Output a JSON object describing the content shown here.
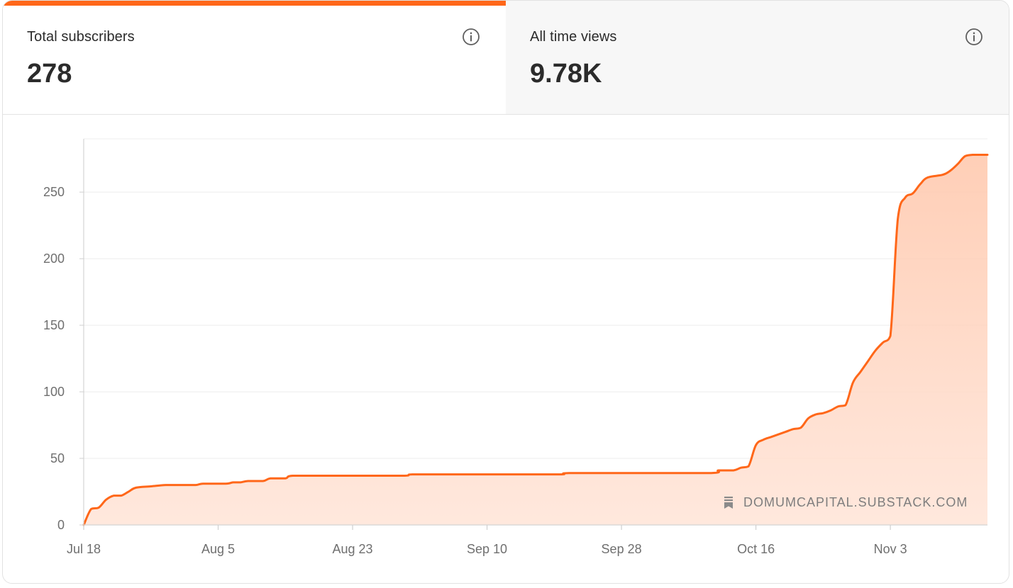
{
  "tabs": [
    {
      "label": "Total subscribers",
      "value": "278",
      "active": true
    },
    {
      "label": "All time views",
      "value": "9.78K",
      "active": false
    }
  ],
  "colors": {
    "accent": "#ff6719",
    "area_fill": "#ffd8c6",
    "grid": "#ececec",
    "axis_text": "#6f6f6f"
  },
  "icons": {
    "info": "info-circle-icon",
    "watermark": "bookmark-icon"
  },
  "watermark": "DOMUMCAPITAL.SUBSTACK.COM",
  "chart_data": {
    "type": "area",
    "title": "",
    "xlabel": "",
    "ylabel": "",
    "ylim": [
      0,
      290
    ],
    "xlim": [
      "2024-07-18",
      "2024-11-16"
    ],
    "y_ticks": [
      0,
      50,
      100,
      150,
      200,
      250
    ],
    "x_ticks": [
      {
        "date": "2024-07-18",
        "label": "Jul 18"
      },
      {
        "date": "2024-08-05",
        "label": "Aug 5"
      },
      {
        "date": "2024-08-23",
        "label": "Aug 23"
      },
      {
        "date": "2024-09-10",
        "label": "Sep 10"
      },
      {
        "date": "2024-09-28",
        "label": "Sep 28"
      },
      {
        "date": "2024-10-16",
        "label": "Oct 16"
      },
      {
        "date": "2024-11-03",
        "label": "Nov 3"
      }
    ],
    "grid": true,
    "series": [
      {
        "points": [
          [
            "2024-07-18",
            0
          ],
          [
            "2024-07-19",
            12
          ],
          [
            "2024-07-20",
            13
          ],
          [
            "2024-07-21",
            19
          ],
          [
            "2024-07-22",
            22
          ],
          [
            "2024-07-23",
            22
          ],
          [
            "2024-07-24",
            25
          ],
          [
            "2024-07-25",
            28
          ],
          [
            "2024-07-27",
            29
          ],
          [
            "2024-07-29",
            30
          ],
          [
            "2024-07-31",
            30
          ],
          [
            "2024-08-02",
            30
          ],
          [
            "2024-08-03",
            31
          ],
          [
            "2024-08-06",
            31
          ],
          [
            "2024-08-07",
            32
          ],
          [
            "2024-08-08",
            32
          ],
          [
            "2024-08-09",
            33
          ],
          [
            "2024-08-11",
            33
          ],
          [
            "2024-08-12",
            35
          ],
          [
            "2024-08-14",
            35
          ],
          [
            "2024-08-15",
            37
          ],
          [
            "2024-08-20",
            37
          ],
          [
            "2024-08-25",
            37
          ],
          [
            "2024-08-30",
            37
          ],
          [
            "2024-08-31",
            38
          ],
          [
            "2024-09-05",
            38
          ],
          [
            "2024-09-15",
            38
          ],
          [
            "2024-09-20",
            38
          ],
          [
            "2024-09-21",
            39
          ],
          [
            "2024-09-30",
            39
          ],
          [
            "2024-10-10",
            39
          ],
          [
            "2024-10-11",
            41
          ],
          [
            "2024-10-13",
            41
          ],
          [
            "2024-10-14",
            43
          ],
          [
            "2024-10-15",
            44
          ],
          [
            "2024-10-16",
            60
          ],
          [
            "2024-10-17",
            64
          ],
          [
            "2024-10-18",
            66
          ],
          [
            "2024-10-19",
            68
          ],
          [
            "2024-10-20",
            70
          ],
          [
            "2024-10-21",
            72
          ],
          [
            "2024-10-22",
            73
          ],
          [
            "2024-10-23",
            80
          ],
          [
            "2024-10-24",
            83
          ],
          [
            "2024-10-25",
            84
          ],
          [
            "2024-10-26",
            86
          ],
          [
            "2024-10-27",
            89
          ],
          [
            "2024-10-28",
            90
          ],
          [
            "2024-10-29",
            107
          ],
          [
            "2024-10-30",
            115
          ],
          [
            "2024-10-31",
            123
          ],
          [
            "2024-11-01",
            131
          ],
          [
            "2024-11-02",
            137
          ],
          [
            "2024-11-03",
            142
          ],
          [
            "2024-11-04",
            230
          ],
          [
            "2024-11-05",
            246
          ],
          [
            "2024-11-06",
            249
          ],
          [
            "2024-11-07",
            256
          ],
          [
            "2024-11-08",
            261
          ],
          [
            "2024-11-10",
            263
          ],
          [
            "2024-11-11",
            266
          ],
          [
            "2024-11-12",
            271
          ],
          [
            "2024-11-13",
            277
          ],
          [
            "2024-11-14",
            278
          ],
          [
            "2024-11-15",
            278
          ]
        ]
      }
    ]
  }
}
